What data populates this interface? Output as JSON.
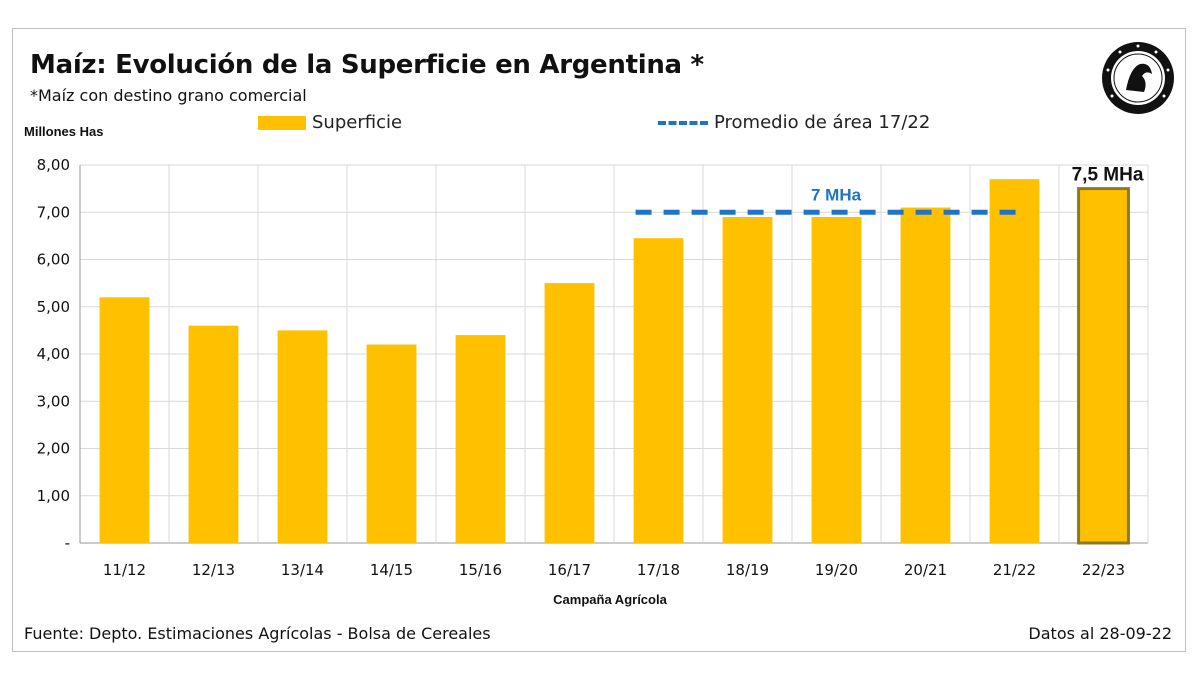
{
  "title": "Maíz: Evolución de la Superficie en Argentina *",
  "subtitle": "*Maíz con destino grano comercial",
  "source": "Fuente: Depto. Estimaciones Agrícolas - Bolsa de Cereales",
  "date_note": "Datos al 28-09-22",
  "colors": {
    "bar": "#FFC000",
    "bar_last_border": "#8C7A20",
    "avg_line": "#1F74C3",
    "grid": "#d9d9d9"
  },
  "seal_icon": "institution-seal-icon",
  "chart_data": {
    "type": "bar",
    "ylabel": "Millones  Has",
    "xlabel": "Campaña  Agrícola",
    "ylim": [
      0,
      8
    ],
    "yticks": [
      0,
      1,
      2,
      3,
      4,
      5,
      6,
      7,
      8
    ],
    "ytick_labels": [
      "-",
      "1,00",
      "2,00",
      "3,00",
      "4,00",
      "5,00",
      "6,00",
      "7,00",
      "8,00"
    ],
    "grid": true,
    "legend_position": "top",
    "categories": [
      "11/12",
      "12/13",
      "13/14",
      "14/15",
      "15/16",
      "16/17",
      "17/18",
      "18/19",
      "19/20",
      "20/21",
      "21/22",
      "22/23"
    ],
    "series": [
      {
        "name": "Superficie",
        "values": [
          5.2,
          4.6,
          4.5,
          4.2,
          4.4,
          5.5,
          6.45,
          6.9,
          6.9,
          7.1,
          7.7,
          7.5
        ]
      }
    ],
    "average": {
      "name": "Promedio de área 17/22",
      "value": 7.0,
      "from": "17/18",
      "to": "21/22",
      "label": "7 MHa"
    },
    "annotations": [
      {
        "category": "22/23",
        "text": "7,5 MHa"
      }
    ]
  }
}
